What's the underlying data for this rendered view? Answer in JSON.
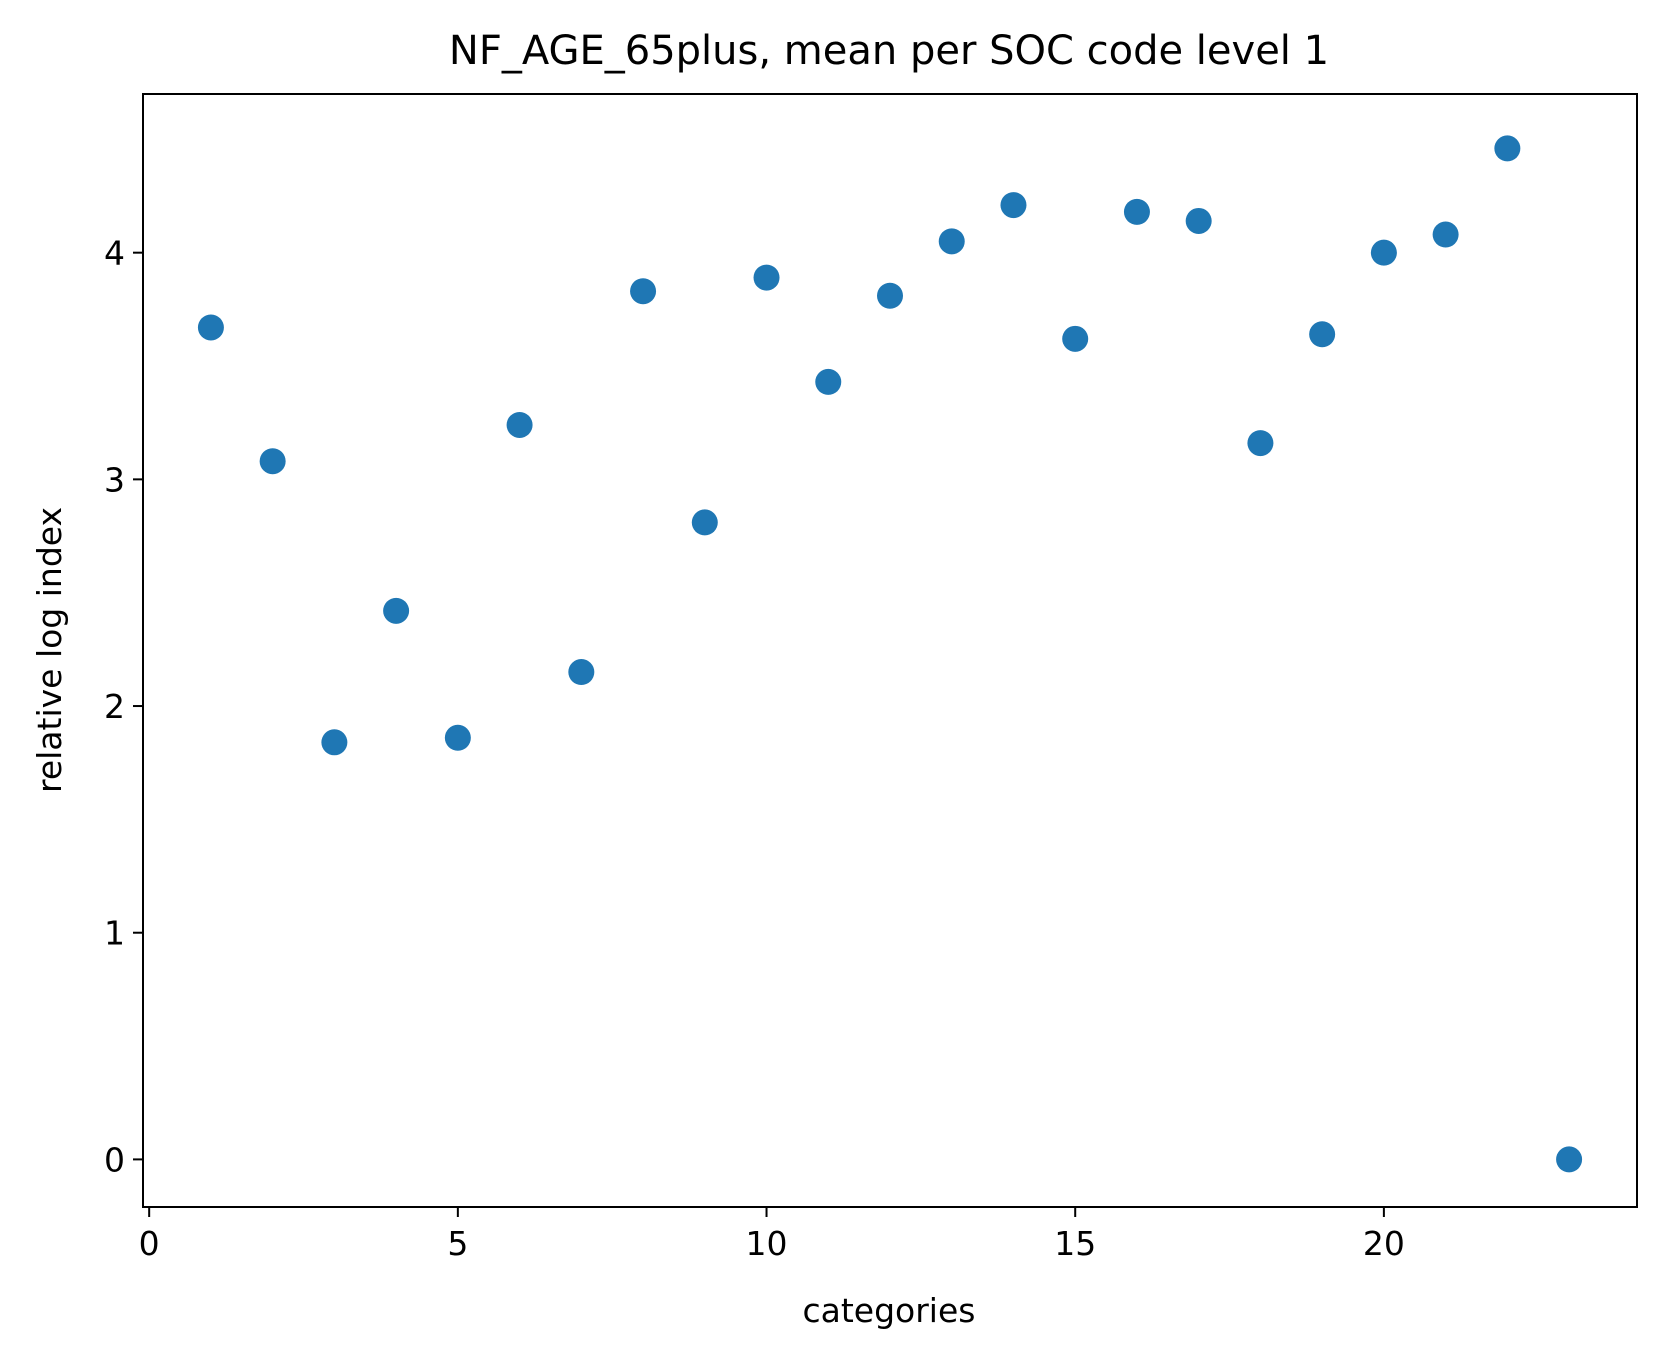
{
  "chart_data": {
    "type": "scatter",
    "title": "NF_AGE_65plus, mean per SOC code level 1",
    "xlabel": "categories",
    "ylabel": "relative log index",
    "xlim": [
      -0.1,
      24.1
    ],
    "ylim": [
      -0.21,
      4.7
    ],
    "x_ticks": [
      0,
      5,
      10,
      15,
      20
    ],
    "y_ticks": [
      0,
      1,
      2,
      3,
      4
    ],
    "grid": false,
    "marker_color": "#1f77b4",
    "x": [
      1,
      2,
      3,
      4,
      5,
      6,
      7,
      8,
      9,
      10,
      11,
      12,
      13,
      14,
      15,
      16,
      17,
      18,
      19,
      20,
      21,
      22,
      23
    ],
    "y": [
      3.67,
      3.08,
      1.84,
      2.42,
      1.86,
      3.24,
      2.15,
      3.83,
      2.81,
      3.89,
      3.43,
      3.81,
      4.05,
      4.21,
      3.62,
      4.18,
      4.14,
      3.16,
      3.64,
      4.0,
      4.08,
      4.46,
      0.0
    ]
  }
}
